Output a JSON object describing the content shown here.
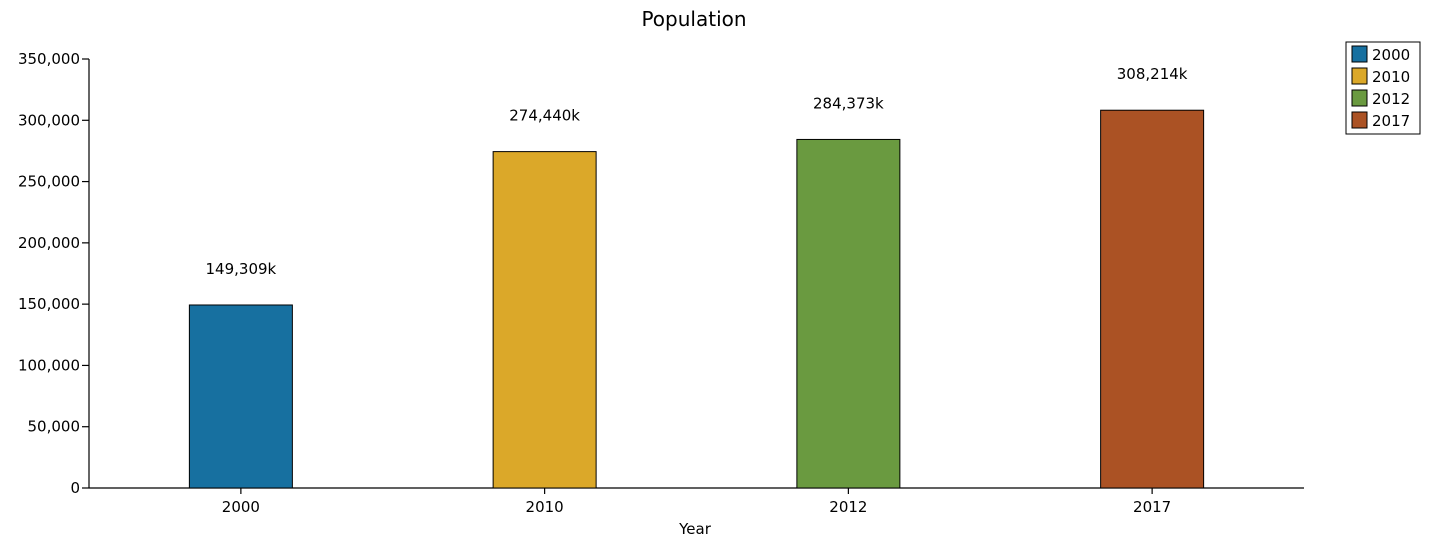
{
  "chart_data": {
    "type": "bar",
    "title": "Population",
    "xlabel": "Year",
    "ylabel": "",
    "categories": [
      "2000",
      "2010",
      "2012",
      "2017"
    ],
    "values": [
      149309,
      274440,
      284373,
      308214
    ],
    "data_labels": [
      "149,309k",
      "274,440k",
      "284,373k",
      "308,214k"
    ],
    "ylim": [
      0,
      350000
    ],
    "yticks": [
      0,
      50000,
      100000,
      150000,
      200000,
      250000,
      300000,
      350000
    ],
    "ytick_labels": [
      "0",
      "50,000",
      "100,000",
      "150,000",
      "200,000",
      "250,000",
      "300,000",
      "350,000"
    ],
    "colors": [
      "#1770a0",
      "#dba829",
      "#6a9a40",
      "#ab5224"
    ],
    "legend": {
      "placement": "top-right",
      "entries": [
        "2000",
        "2010",
        "2012",
        "2017"
      ]
    },
    "grid": false
  }
}
